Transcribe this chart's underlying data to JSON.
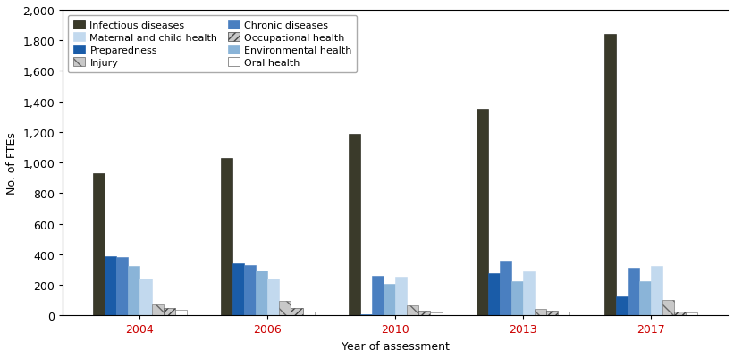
{
  "years": [
    "2004",
    "2006",
    "2010",
    "2013",
    "2017"
  ],
  "categories": [
    "Infectious diseases",
    "Preparedness",
    "Chronic diseases",
    "Environmental health",
    "Maternal and child health",
    "Injury",
    "Occupational health",
    "Oral health"
  ],
  "values": {
    "Infectious diseases": [
      930,
      1030,
      1190,
      1350,
      1840
    ],
    "Preparedness": [
      390,
      340,
      10,
      275,
      125
    ],
    "Chronic diseases": [
      385,
      330,
      260,
      360,
      310
    ],
    "Environmental health": [
      325,
      295,
      205,
      225,
      225
    ],
    "Maternal and child health": [
      245,
      245,
      255,
      290,
      325
    ],
    "Injury": [
      70,
      95,
      65,
      45,
      100
    ],
    "Occupational health": [
      50,
      50,
      30,
      30,
      25
    ],
    "Oral health": [
      35,
      25,
      20,
      25,
      20
    ]
  },
  "bar_facecolors": [
    "#3a3a2a",
    "#1a5ca8",
    "#4a7fc0",
    "#8ab4d8",
    "#c2d9ee",
    "#c8c8c8",
    "#c8c8c8",
    "#ffffff"
  ],
  "bar_edgecolors": [
    "#1a1a10",
    "#1a5ca8",
    "#4a7fc0",
    "#8ab4d8",
    "#c2d9ee",
    "#666666",
    "#444444",
    "#666666"
  ],
  "hatch_patterns": [
    "",
    "",
    "",
    "",
    "",
    "\\\\",
    "////",
    ""
  ],
  "legend_order": [
    "Infectious diseases",
    "Maternal and child health",
    "Preparedness",
    "Injury",
    "Chronic diseases",
    "Occupational health",
    "Environmental health",
    "Oral health"
  ],
  "legend_facecolors": [
    "#3a3a2a",
    "#c2d9ee",
    "#1a5ca8",
    "#c8c8c8",
    "#4a7fc0",
    "#c8c8c8",
    "#8ab4d8",
    "#ffffff"
  ],
  "legend_edgecolors": [
    "#1a1a10",
    "#c2d9ee",
    "#1a5ca8",
    "#666666",
    "#4a7fc0",
    "#444444",
    "#8ab4d8",
    "#666666"
  ],
  "legend_hatches": [
    "",
    "",
    "",
    "\\\\",
    "",
    "////",
    "",
    ""
  ],
  "ylabel": "No. of FTEs",
  "xlabel": "Year of assessment",
  "ylim": [
    0,
    2000
  ],
  "yticks": [
    0,
    200,
    400,
    600,
    800,
    1000,
    1200,
    1400,
    1600,
    1800,
    2000
  ],
  "figsize": [
    8.21,
    4.02
  ],
  "dpi": 100
}
